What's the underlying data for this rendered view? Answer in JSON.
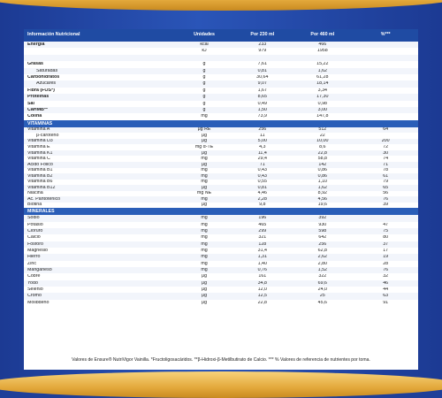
{
  "header": {
    "col_name": "Información Nutricional",
    "col_unit": "Unidades",
    "col_230": "Por 230 ml",
    "col_460": "Por 460 ml",
    "col_vr": "%***"
  },
  "nutrition": [
    {
      "name": "Energía",
      "bold": true,
      "unit": "kcal",
      "v230": "233",
      "v460": "466",
      "vr": ""
    },
    {
      "name": "",
      "bold": false,
      "unit": "kJ",
      "v230": "979",
      "v460": "1958",
      "vr": ""
    },
    {
      "name": "",
      "bold": false,
      "unit": "",
      "v230": "",
      "v460": "",
      "vr": ""
    },
    {
      "name": "Grasas",
      "bold": true,
      "unit": "g",
      "v230": "7,61",
      "v460": "15,22",
      "vr": ""
    },
    {
      "name": "Saturadas",
      "indent": true,
      "unit": "g",
      "v230": "0,81",
      "v460": "1,62",
      "vr": ""
    },
    {
      "name": "Carbohidratos",
      "bold": true,
      "unit": "g",
      "v230": "30,64",
      "v460": "61,28",
      "vr": ""
    },
    {
      "name": "Azúcares",
      "indent": true,
      "unit": "g",
      "v230": "9,07",
      "v460": "18,14",
      "vr": ""
    },
    {
      "name": "Fibra (FOS*)",
      "bold": true,
      "unit": "g",
      "v230": "1,67",
      "v460": "3,34",
      "vr": ""
    },
    {
      "name": "Proteínas",
      "bold": true,
      "unit": "g",
      "v230": "8,65",
      "v460": "17,30",
      "vr": ""
    },
    {
      "name": "Sal",
      "bold": true,
      "unit": "g",
      "v230": "0,49",
      "v460": "0,98",
      "vr": ""
    },
    {
      "name": "CaHMB**",
      "bold": true,
      "unit": "g",
      "v230": "1,50",
      "v460": "3,00",
      "vr": ""
    },
    {
      "name": "Colina",
      "bold": true,
      "unit": "mg",
      "v230": "73,9",
      "v460": "147,8",
      "vr": ""
    }
  ],
  "vitamins_title": "VITAMINAS",
  "vitamins": [
    {
      "name": "Vitamina A",
      "unit": "μg RE",
      "v230": "256",
      "v460": "512",
      "vr": "64"
    },
    {
      "name": "β-caroteno",
      "indent": true,
      "unit": "μg",
      "v230": "11",
      "v460": "22",
      "vr": ""
    },
    {
      "name": "Vitamina D3",
      "unit": "μg",
      "v230": "5,00",
      "v460": "10,00",
      "vr": "200"
    },
    {
      "name": "Vitamina E",
      "unit": "mg α-TE",
      "v230": "4,3",
      "v460": "8,6",
      "vr": "72"
    },
    {
      "name": "Vitamina K1",
      "unit": "μg",
      "v230": "11,4",
      "v460": "22,8",
      "vr": "30"
    },
    {
      "name": "Vitamina C",
      "unit": "mg",
      "v230": "29,4",
      "v460": "58,8",
      "vr": "74"
    },
    {
      "name": "Ácido Fólico",
      "unit": "μg",
      "v230": "71",
      "v460": "142",
      "vr": "71"
    },
    {
      "name": "Vitamina B1",
      "unit": "mg",
      "v230": "0,43",
      "v460": "0,86",
      "vr": "78"
    },
    {
      "name": "Vitamina B2",
      "unit": "mg",
      "v230": "0,43",
      "v460": "0,86",
      "vr": "61"
    },
    {
      "name": "Vitamina B6",
      "unit": "mg",
      "v230": "0,55",
      "v460": "1,10",
      "vr": "79"
    },
    {
      "name": "Vitamina B12",
      "unit": "μg",
      "v230": "0,81",
      "v460": "1,62",
      "vr": "65"
    },
    {
      "name": "Niacina",
      "unit": "mg NE",
      "v230": "4,46",
      "v460": "8,92",
      "vr": "56"
    },
    {
      "name": "Ác. Pantoténico",
      "unit": "mg",
      "v230": "2,28",
      "v460": "4,56",
      "vr": "76"
    },
    {
      "name": "Biotina",
      "unit": "μg",
      "v230": "9,8",
      "v460": "19,6",
      "vr": "39"
    }
  ],
  "minerals_title": "MINERALES",
  "minerals": [
    {
      "name": "Sodio",
      "unit": "mg",
      "v230": "196",
      "v460": "392",
      "vr": ""
    },
    {
      "name": "Potasio",
      "unit": "mg",
      "v230": "465",
      "v460": "930",
      "vr": "47"
    },
    {
      "name": "Cloruro",
      "unit": "mg",
      "v230": "299",
      "v460": "598",
      "vr": "75"
    },
    {
      "name": "Calcio",
      "unit": "mg",
      "v230": "321",
      "v460": "642",
      "vr": "80"
    },
    {
      "name": "Fósforo",
      "unit": "mg",
      "v230": "128",
      "v460": "256",
      "vr": "37"
    },
    {
      "name": "Magnesio",
      "unit": "mg",
      "v230": "31,4",
      "v460": "62,8",
      "vr": "17"
    },
    {
      "name": "Hierro",
      "unit": "mg",
      "v230": "1,31",
      "v460": "2,62",
      "vr": "19"
    },
    {
      "name": "Zinc",
      "unit": "mg",
      "v230": "1,40",
      "v460": "2,80",
      "vr": "28"
    },
    {
      "name": "Manganeso",
      "unit": "mg",
      "v230": "0,76",
      "v460": "1,52",
      "vr": "76"
    },
    {
      "name": "Cobre",
      "unit": "μg",
      "v230": "161",
      "v460": "322",
      "vr": "32"
    },
    {
      "name": "Yodo",
      "unit": "μg",
      "v230": "34,8",
      "v460": "69,6",
      "vr": "46"
    },
    {
      "name": "Selenio",
      "unit": "μg",
      "v230": "12,0",
      "v460": "24,0",
      "vr": "44"
    },
    {
      "name": "Cromo",
      "unit": "μg",
      "v230": "12,5",
      "v460": "25",
      "vr": "63"
    },
    {
      "name": "Molibdeno",
      "unit": "μg",
      "v230": "22,8",
      "v460": "45,6",
      "vr": "91"
    }
  ],
  "footnote": "Valores de Ensure® NutriVigor Vainilla. *Fructoligosacáridos. **β-Hidroxi-β-Metilbutirato de Calcio. *** % Valores de referencia de nutrientes por toma."
}
